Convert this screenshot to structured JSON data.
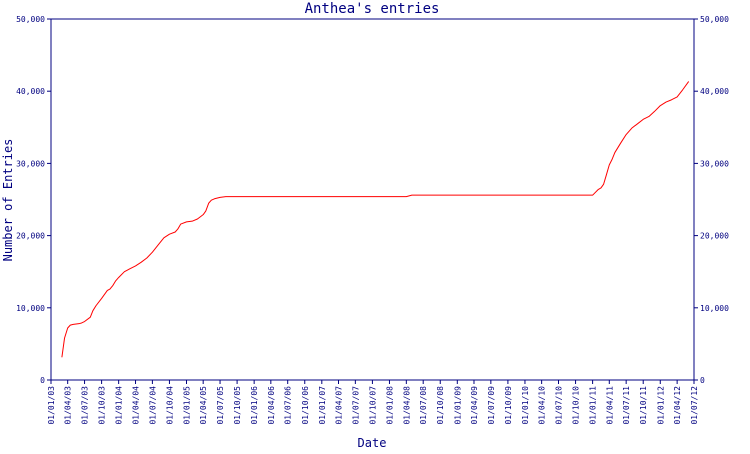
{
  "chart_data": {
    "type": "line",
    "title": "Anthea's entries",
    "xlabel": "Date",
    "ylabel": "Number of Entries",
    "ylim": [
      0,
      50000
    ],
    "grid": false,
    "y_ticks": [
      0,
      10000,
      20000,
      30000,
      40000,
      50000
    ],
    "y_tick_labels": [
      "0",
      "10,000",
      "20,000",
      "30,000",
      "40,000",
      "50,000"
    ],
    "x_tick_labels": [
      "01/01/03",
      "01/04/03",
      "01/07/03",
      "01/10/03",
      "01/01/04",
      "01/04/04",
      "01/07/04",
      "01/10/04",
      "01/01/05",
      "01/04/05",
      "01/07/05",
      "01/10/05",
      "01/01/06",
      "01/04/06",
      "01/07/06",
      "01/10/06",
      "01/01/07",
      "01/04/07",
      "01/07/07",
      "01/10/07",
      "01/01/08",
      "01/04/08",
      "01/07/08",
      "01/10/08",
      "01/01/09",
      "01/04/09",
      "01/07/09",
      "01/10/09",
      "01/01/10",
      "01/04/10",
      "01/07/10",
      "01/10/10",
      "01/01/11",
      "01/04/11",
      "01/07/11",
      "01/10/11",
      "01/01/12",
      "01/04/12",
      "01/07/12"
    ],
    "colors": {
      "axis": "#000080",
      "series": "#ff0000",
      "text": "#000080"
    },
    "series": [
      {
        "x": [
          "01/03/03",
          "15/03/03",
          "01/04/03",
          "15/04/03",
          "01/05/03",
          "01/06/03",
          "15/06/03",
          "01/07/03",
          "01/08/03",
          "15/08/03",
          "01/09/03",
          "01/10/03",
          "01/11/03",
          "15/11/03",
          "01/12/03",
          "15/12/03",
          "01/01/04",
          "01/02/04",
          "01/03/04",
          "01/04/04",
          "01/05/04",
          "01/06/04",
          "01/07/04",
          "01/08/04",
          "01/09/04",
          "01/10/04",
          "01/11/04",
          "15/11/04",
          "01/12/04",
          "01/01/05",
          "01/02/05",
          "01/03/05",
          "01/04/05",
          "15/04/05",
          "01/05/05",
          "15/05/05",
          "01/06/05",
          "01/07/05",
          "01/08/05",
          "01/09/05",
          "01/07/06",
          "01/01/07",
          "01/07/07",
          "01/01/08",
          "01/04/08",
          "01/05/08",
          "01/10/08",
          "01/01/09",
          "01/07/09",
          "01/01/10",
          "01/07/10",
          "01/10/10",
          "01/12/10",
          "01/01/11",
          "01/02/11",
          "15/02/11",
          "01/03/11",
          "15/03/11",
          "01/04/11",
          "15/04/11",
          "01/05/11",
          "01/06/11",
          "01/07/11",
          "01/08/11",
          "01/09/11",
          "01/10/11",
          "01/11/11",
          "01/12/11",
          "01/01/12",
          "01/02/12",
          "01/03/12",
          "01/04/12",
          "01/05/12",
          "01/06/12"
        ],
        "values": [
          3200,
          5800,
          7200,
          7600,
          7700,
          7800,
          7900,
          8100,
          8700,
          9600,
          10300,
          11300,
          12400,
          12600,
          13100,
          13700,
          14200,
          15000,
          15400,
          15800,
          16300,
          16900,
          17700,
          18700,
          19700,
          20200,
          20500,
          20900,
          21600,
          21900,
          22000,
          22300,
          22900,
          23400,
          24500,
          24900,
          25100,
          25300,
          25400,
          25400,
          25400,
          25400,
          25400,
          25400,
          25400,
          25600,
          25600,
          25600,
          25600,
          25600,
          25600,
          25600,
          25600,
          25600,
          26400,
          26600,
          27100,
          28300,
          29800,
          30500,
          31500,
          32800,
          34000,
          34900,
          35500,
          36100,
          36500,
          37200,
          38000,
          38500,
          38800,
          39200,
          40200,
          41300
        ]
      }
    ]
  }
}
